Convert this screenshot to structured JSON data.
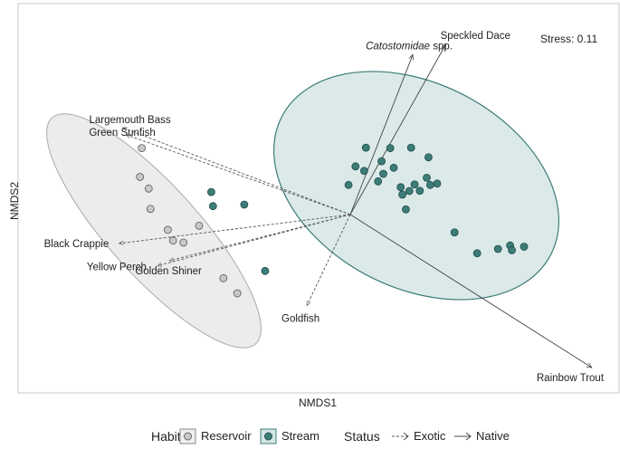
{
  "chart_data": {
    "type": "scatter",
    "xlabel": "NMDS1",
    "ylabel": "NMDS2",
    "annotation": "Stress: 0.11",
    "xlim": [
      -1.6,
      1.5
    ],
    "ylim": [
      -1.0,
      1.0
    ],
    "grid": false,
    "legend_position": "bottom",
    "series": [
      {
        "name": "Reservoir",
        "color": "#c8c8c8",
        "ellipse_fill": "#ececec",
        "points": [
          [
            -1.2,
            0.386
          ],
          [
            -1.21,
            0.219
          ],
          [
            -1.16,
            0.151
          ],
          [
            -1.15,
            0.033
          ],
          [
            -1.05,
            -0.089
          ],
          [
            -1.02,
            -0.151
          ],
          [
            -0.96,
            -0.163
          ],
          [
            -0.87,
            -0.065
          ],
          [
            -0.73,
            -0.37
          ],
          [
            -0.65,
            -0.458
          ]
        ]
      },
      {
        "name": "Stream",
        "color": "#3d7d78",
        "ellipse_fill": "#cfe3e1",
        "points": [
          [
            -0.8,
            0.131
          ],
          [
            -0.79,
            0.049
          ],
          [
            -0.61,
            0.058
          ],
          [
            -0.49,
            -0.328
          ],
          [
            -0.01,
            0.172
          ],
          [
            0.03,
            0.28
          ],
          [
            0.08,
            0.254
          ],
          [
            0.09,
            0.389
          ],
          [
            0.16,
            0.193
          ],
          [
            0.19,
            0.237
          ],
          [
            0.18,
            0.31
          ],
          [
            0.23,
            0.386
          ],
          [
            0.25,
            0.272
          ],
          [
            0.29,
            0.159
          ],
          [
            0.3,
            0.116
          ],
          [
            0.32,
            0.03
          ],
          [
            0.34,
            0.137
          ],
          [
            0.37,
            0.175
          ],
          [
            0.35,
            0.389
          ],
          [
            0.4,
            0.138
          ],
          [
            0.44,
            0.214
          ],
          [
            0.45,
            0.333
          ],
          [
            0.46,
            0.172
          ],
          [
            0.5,
            0.18
          ],
          [
            0.6,
            -0.104
          ],
          [
            0.73,
            -0.225
          ],
          [
            0.85,
            -0.2
          ],
          [
            0.92,
            -0.18
          ],
          [
            0.93,
            -0.207
          ],
          [
            1.0,
            -0.187
          ]
        ]
      }
    ],
    "vectors": [
      {
        "label": "Catostomidae spp.",
        "status": "Native",
        "x": 0.36,
        "y": 0.93
      },
      {
        "label": "Speckled Dace",
        "status": "Native",
        "x": 0.55,
        "y": 0.99
      },
      {
        "label": "Rainbow Trout",
        "status": "Native",
        "x": 1.39,
        "y": -0.89
      },
      {
        "label": "Largemouth Bass",
        "status": "Exotic",
        "x": -1.31,
        "y": 0.505
      },
      {
        "label": "Green Sunfish",
        "status": "Exotic",
        "x": -1.29,
        "y": 0.464
      },
      {
        "label": "Black Crappie",
        "status": "Exotic",
        "x": -1.33,
        "y": -0.168
      },
      {
        "label": "Yellow Perch",
        "status": "Exotic",
        "x": -1.11,
        "y": -0.298
      },
      {
        "label": "Golden Shiner",
        "status": "Exotic",
        "x": -1.04,
        "y": -0.268
      },
      {
        "label": "Goldfish",
        "status": "Exotic",
        "x": -0.25,
        "y": -0.529
      }
    ]
  },
  "legend": {
    "habitat_title": "Habitat",
    "reservoir": "Reservoir",
    "stream": "Stream",
    "status_title": "Status",
    "exotic": "Exotic",
    "native": "Native"
  }
}
